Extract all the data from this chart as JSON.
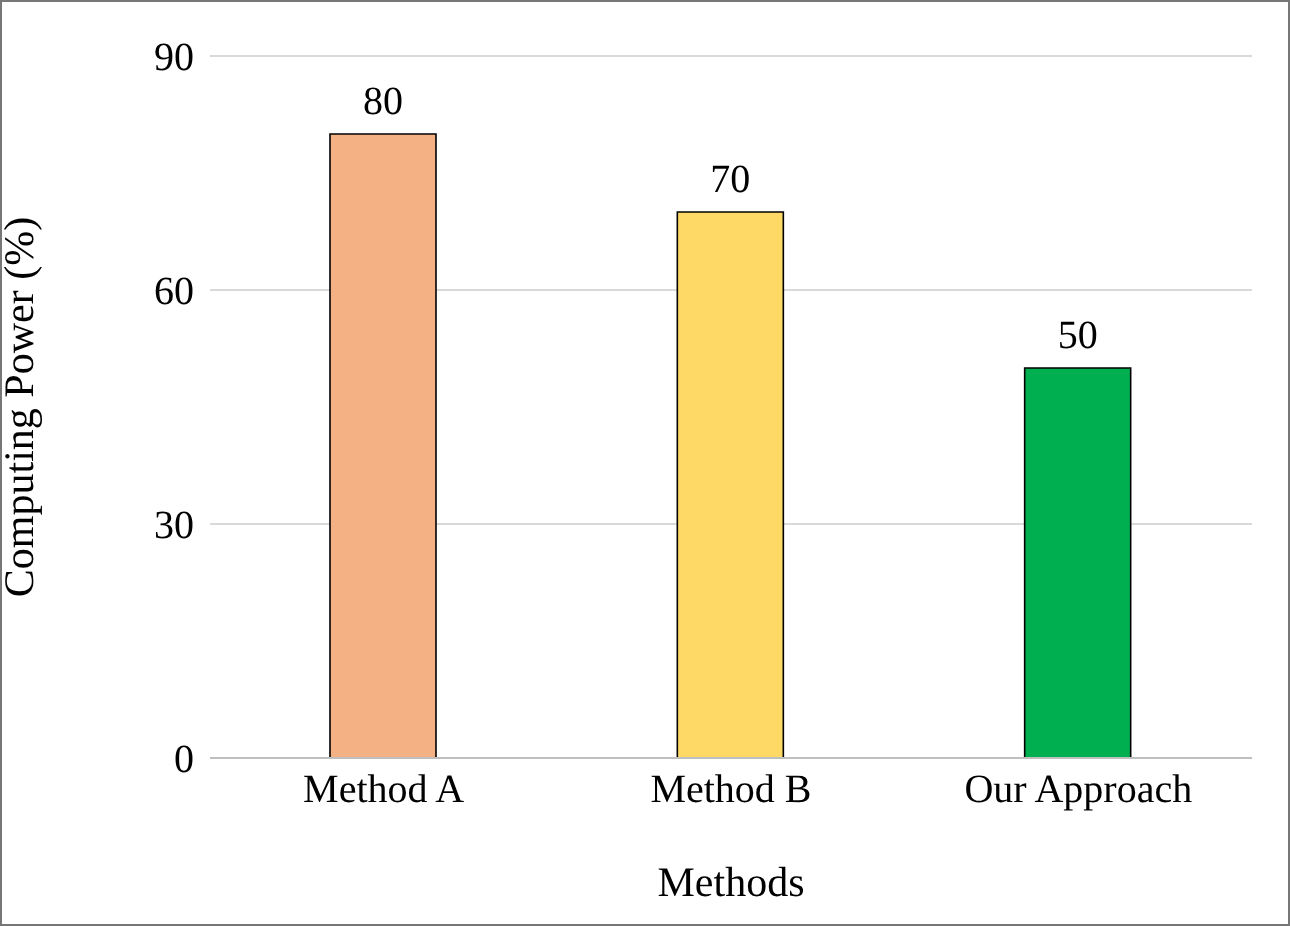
{
  "chart_data": {
    "type": "bar",
    "xlabel": "Methods",
    "ylabel": "Computing Power (%)",
    "categories": [
      "Method A",
      "Method B",
      "Our Approach"
    ],
    "values": [
      80,
      70,
      50
    ],
    "colors": [
      "#f4b183",
      "#ffd966",
      "#00b050"
    ],
    "ylim": [
      0,
      90
    ],
    "yticks": [
      0,
      30,
      60,
      90
    ],
    "grid": "y",
    "data_labels": true
  }
}
